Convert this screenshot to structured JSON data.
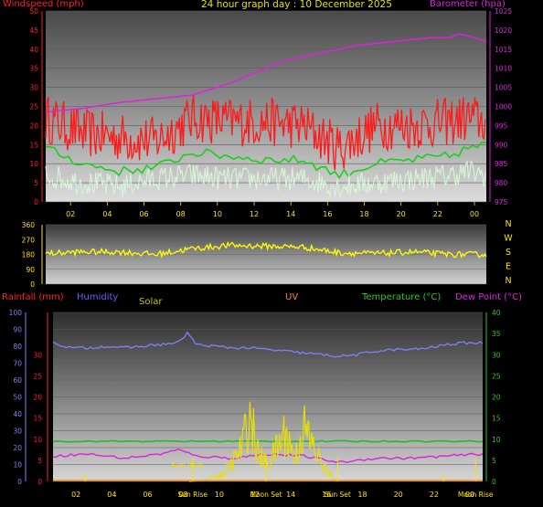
{
  "title": "24 hour graph day : 10 December 2025",
  "colors": {
    "windspeed": "#ff1a1a",
    "gust_green": "#1ad11a",
    "wind_avg": "#d8f5d8",
    "barometer": "#e020e0",
    "direction": "#ffff00",
    "humidity": "#8080ff",
    "temperature": "#22bb22",
    "dewpoint": "#dd22dd",
    "solar": "#e8e000",
    "uv": "#ff8c00",
    "rainfall": "#ff2020",
    "marker": "#ffe000"
  },
  "chart_data": [
    {
      "type": "line",
      "name": "wind-pressure",
      "left_axis_label": "Windspeed (mph)",
      "right_axis_label": "Barometer (hpa)",
      "left_ticks": [
        "0",
        "5",
        "10",
        "15",
        "20",
        "25",
        "30",
        "35",
        "40",
        "45",
        "50"
      ],
      "right_ticks": [
        "975",
        "980",
        "985",
        "990",
        "995",
        "1000",
        "1005",
        "1010",
        "1015",
        "1020",
        "1025"
      ],
      "x_ticks": [
        "02",
        "04",
        "06",
        "08",
        "10",
        "12",
        "14",
        "16",
        "18",
        "20",
        "22",
        "00"
      ],
      "ylim_left": [
        0,
        50
      ],
      "ylim_right": [
        975,
        1025
      ],
      "barometer": {
        "x": [
          0,
          2,
          4,
          6,
          8,
          10,
          11,
          12,
          13,
          14,
          15,
          16,
          17,
          18,
          19,
          20,
          21,
          22,
          22.5,
          23,
          24
        ],
        "y": [
          998.5,
          999.5,
          1001,
          1002,
          1003,
          1006,
          1008,
          1010,
          1012,
          1013,
          1014,
          1015,
          1016,
          1016.5,
          1017,
          1017.5,
          1018,
          1018,
          1019,
          1018.5,
          1017
        ]
      },
      "wind_max": {
        "x": [
          0,
          2,
          4,
          6,
          8,
          10,
          12,
          14,
          16,
          18,
          20,
          22,
          23,
          24
        ],
        "y": [
          22,
          18,
          17,
          16,
          22,
          21,
          21,
          20,
          14,
          20,
          20,
          21,
          22,
          21
        ]
      },
      "wind_gust_avg": {
        "x": [
          0,
          2,
          4,
          6,
          8,
          10,
          12,
          14,
          16,
          18,
          20,
          22,
          23,
          24
        ],
        "y": [
          14,
          10,
          8,
          9,
          13,
          12,
          11,
          11,
          7,
          10,
          11,
          12,
          14,
          15
        ]
      },
      "wind_avg": {
        "x": [
          0,
          2,
          4,
          6,
          8,
          10,
          12,
          14,
          16,
          18,
          20,
          22,
          23,
          24
        ],
        "y": [
          7,
          5,
          4,
          6,
          7,
          6,
          6,
          6,
          4,
          5,
          6,
          7,
          8,
          7
        ]
      }
    },
    {
      "type": "line",
      "name": "wind-direction",
      "left_ticks": [
        "0",
        "90",
        "180",
        "270",
        "360"
      ],
      "right_labels": [
        "N",
        "W",
        "S",
        "E",
        "N"
      ],
      "ylim": [
        0,
        360
      ],
      "direction": {
        "x": [
          0,
          2,
          4,
          6,
          8,
          10,
          12,
          14,
          16,
          18,
          20,
          22,
          24
        ],
        "y": [
          185,
          195,
          195,
          180,
          215,
          235,
          230,
          225,
          190,
          185,
          195,
          180,
          180
        ]
      }
    },
    {
      "type": "line",
      "name": "humidity-temp",
      "rainfall_label": "Rainfall (mm)",
      "humidity_label": "Humidity",
      "solar_label": "Solar",
      "uv_label": "UV",
      "temperature_label": "Temperature (°C)",
      "dewpoint_label": "Dew Point (°C)",
      "humidity_ticks": [
        "0",
        "10",
        "20",
        "30",
        "40",
        "50",
        "60",
        "70",
        "80",
        "90",
        "100"
      ],
      "rain_ticks": [
        "0",
        "5",
        "10",
        "15",
        "20",
        "25",
        "30"
      ],
      "right_ticks": [
        "0",
        "5",
        "10",
        "15",
        "20",
        "25",
        "30",
        "35",
        "40"
      ],
      "x_ticks": [
        "02",
        "04",
        "06",
        "08",
        "10",
        "12",
        "14",
        "16",
        "18",
        "20",
        "22",
        "00"
      ],
      "event_labels": [
        "Sun Rise",
        "Moon Set",
        "Sun Set",
        "Moon Rise"
      ],
      "events": [
        {
          "label": "Sun Rise",
          "x": 7.8
        },
        {
          "label": "Moon Set",
          "x": 11.9
        },
        {
          "label": "Sun Set",
          "x": 15.9
        },
        {
          "label": "Moon Rise",
          "x": 23.6
        }
      ],
      "humidity": {
        "x": [
          0,
          1,
          2,
          3,
          4,
          5,
          6,
          7,
          7.5,
          8,
          9,
          10,
          11,
          12,
          13,
          14,
          15,
          16,
          17,
          18,
          19,
          20,
          21,
          22,
          23,
          24
        ],
        "y": [
          82,
          79,
          79,
          80,
          79,
          80,
          81,
          82,
          88,
          81,
          80,
          79,
          79,
          78,
          77,
          76,
          75,
          74,
          75,
          77,
          78,
          78,
          79,
          81,
          82,
          82
        ]
      },
      "temperature": {
        "x": [
          0,
          6,
          12,
          18,
          24
        ],
        "y": [
          9.5,
          9.5,
          9.5,
          9.5,
          9.5
        ]
      },
      "dewpoint": {
        "x": [
          0,
          2,
          4,
          6,
          7,
          8,
          10,
          12,
          14,
          16,
          18,
          20,
          22,
          24
        ],
        "y": [
          6,
          6.5,
          5.5,
          6.5,
          7.5,
          6,
          5.5,
          6.5,
          6,
          4.5,
          5.5,
          5.5,
          6,
          6.5
        ]
      },
      "solar": {
        "x": [
          7.6,
          8.5,
          9,
          9.5,
          10,
          10.5,
          11,
          11.5,
          12,
          12.5,
          13,
          13.5,
          14,
          14.5,
          15,
          15.5,
          16
        ],
        "y": [
          0,
          0.3,
          1.2,
          2,
          5,
          9,
          18,
          7,
          5,
          9,
          14,
          6,
          15,
          10,
          5,
          1.5,
          0
        ]
      }
    }
  ]
}
